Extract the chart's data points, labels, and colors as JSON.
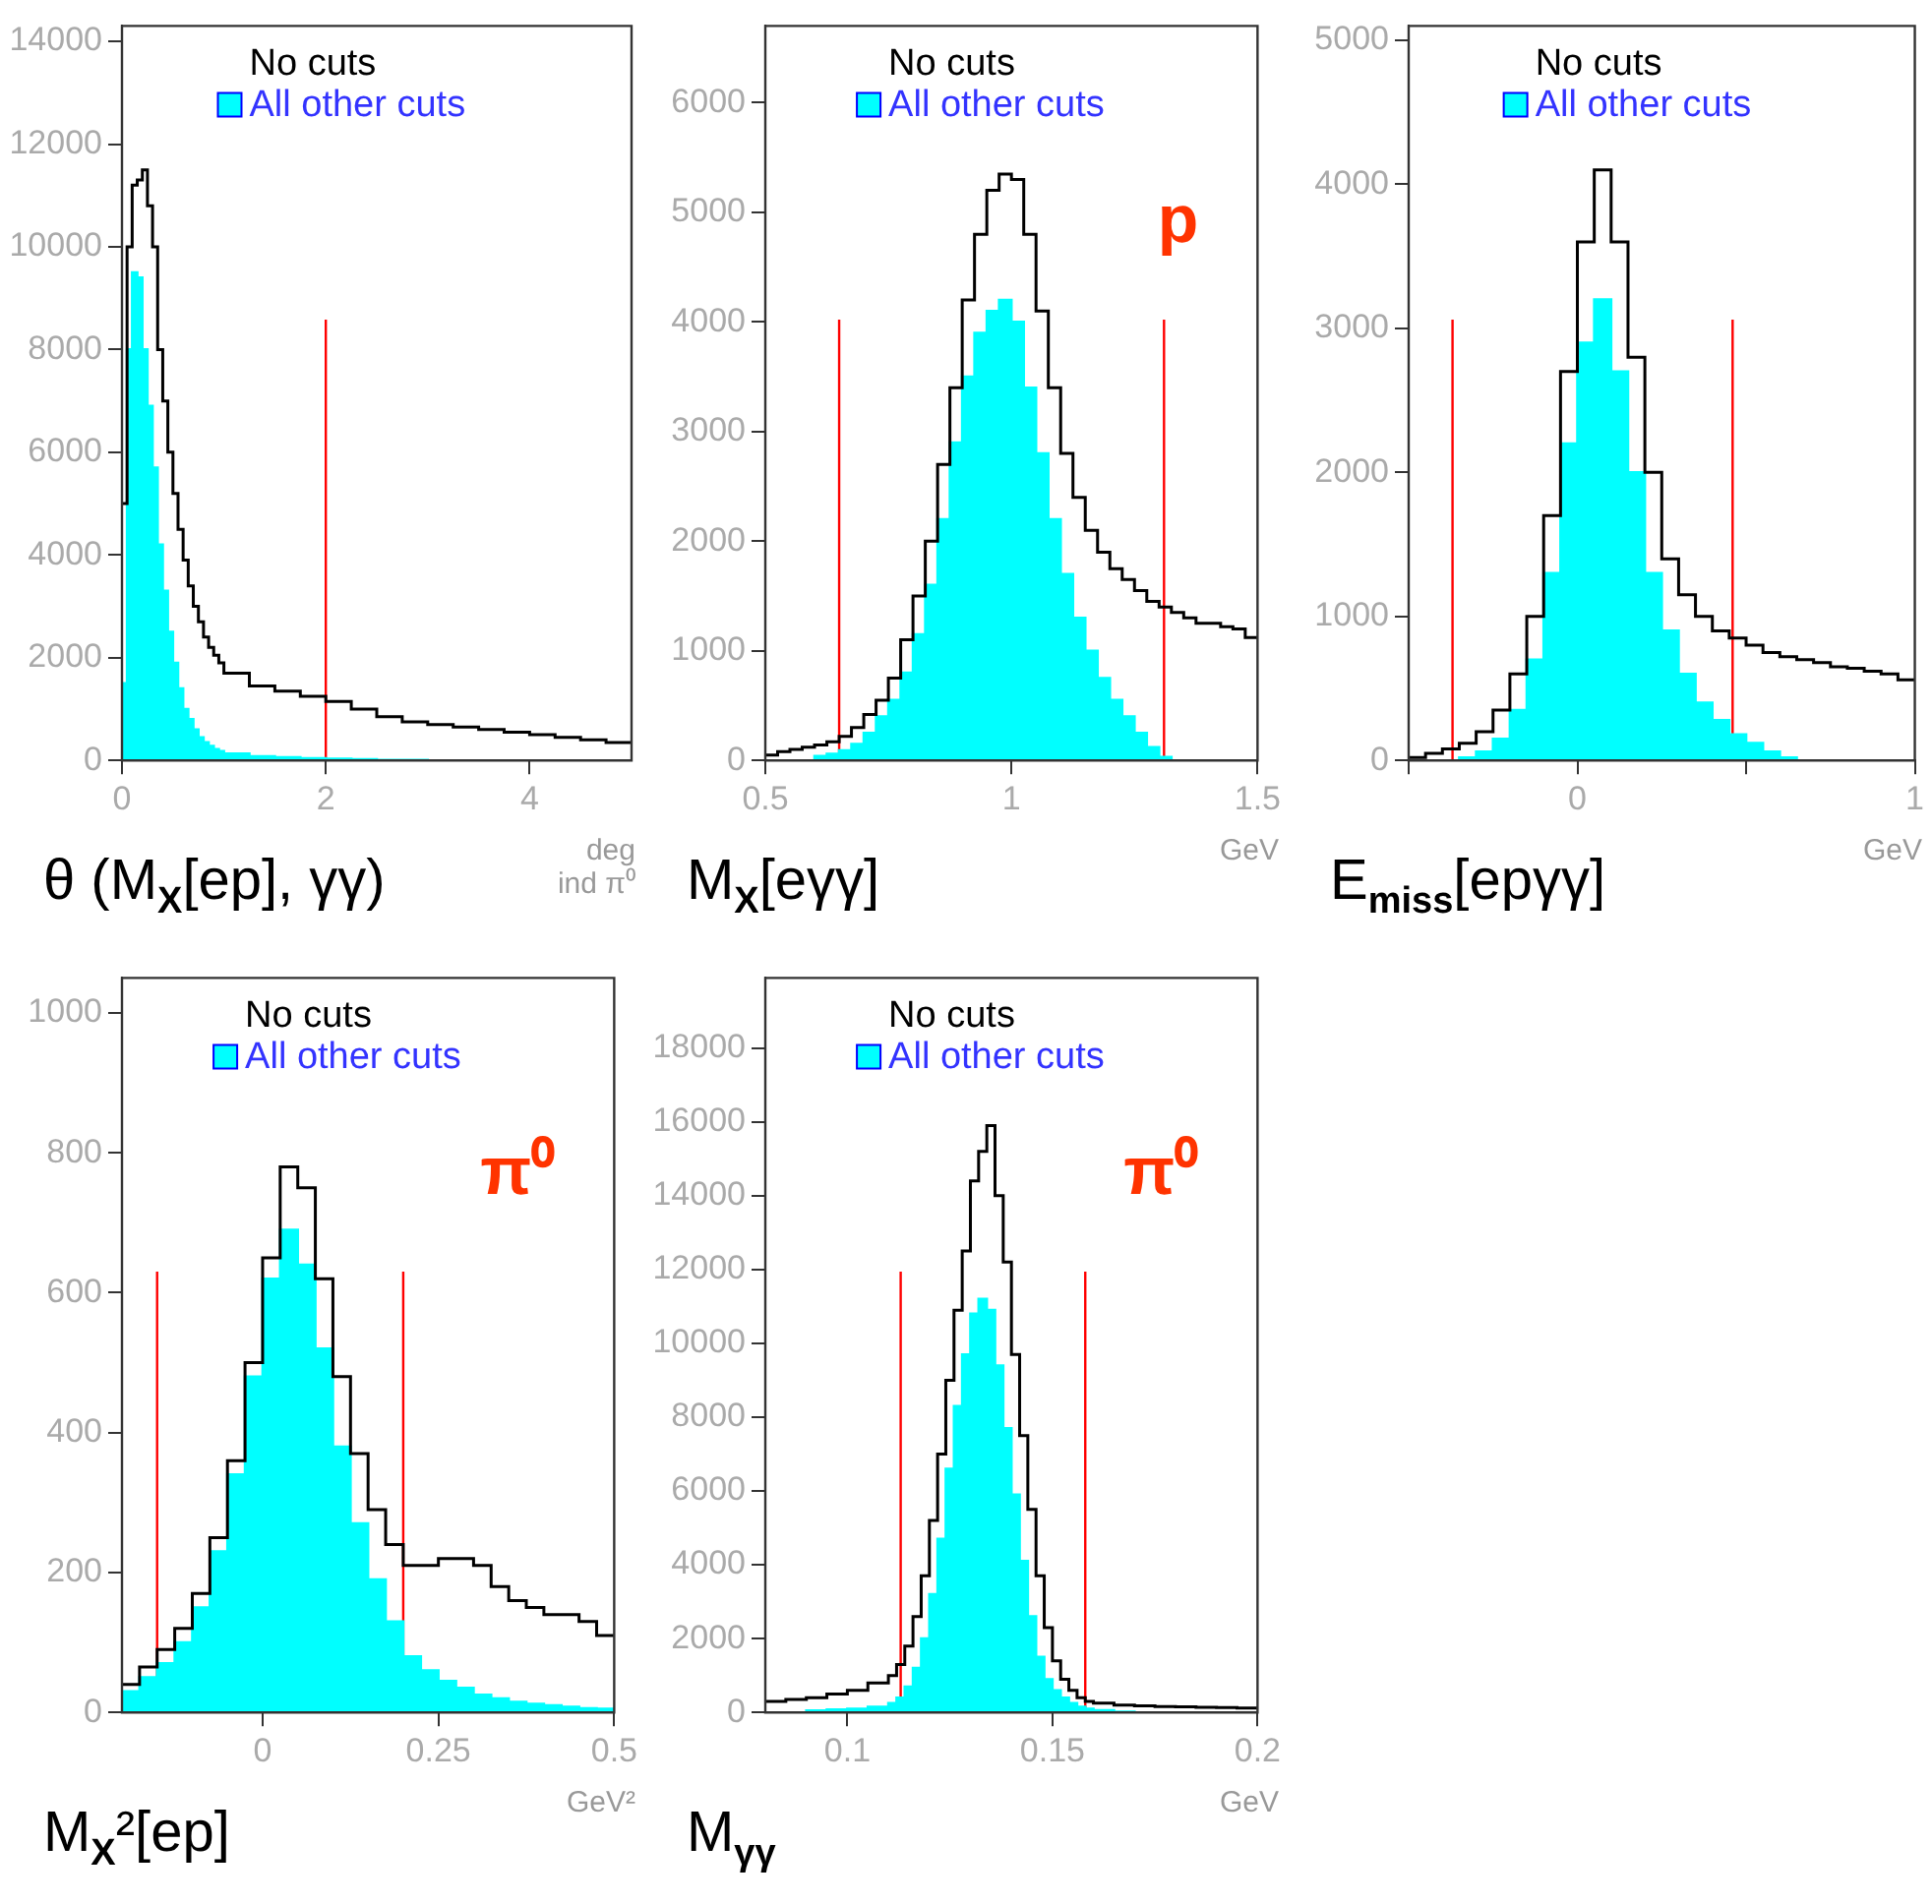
{
  "chart_data": [
    {
      "type": "histogram",
      "title": "θ (M$_{X}$[ep], γγ)",
      "xlabel": "deg ind π⁰",
      "xlim": [
        0,
        5
      ],
      "xticks": [
        0,
        2,
        4
      ],
      "ylim": [
        0,
        14300
      ],
      "yticks": [
        0,
        2000,
        4000,
        6000,
        8000,
        10000,
        12000,
        14000
      ],
      "legend": "top",
      "grid": false,
      "bins": [
        0,
        0.05,
        0.1,
        0.15,
        0.2,
        0.25,
        0.3,
        0.35,
        0.4,
        0.45,
        0.5,
        0.55,
        0.6,
        0.65,
        0.7,
        0.75,
        0.8,
        0.85,
        0.9,
        0.95,
        1.0,
        1.25,
        1.5,
        1.75,
        2.0,
        2.25,
        2.5,
        2.75,
        3.0,
        3.25,
        3.5,
        3.75,
        4.0,
        4.25,
        4.5,
        4.75,
        5.0
      ],
      "series": [
        {
          "name": "No cuts",
          "color": "#000000",
          "values": [
            5000,
            10000,
            11200,
            11300,
            11500,
            10800,
            10000,
            8000,
            7000,
            6000,
            5200,
            4500,
            3900,
            3400,
            3000,
            2700,
            2400,
            2200,
            2050,
            1900,
            1700,
            1450,
            1350,
            1250,
            1150,
            1000,
            850,
            750,
            700,
            650,
            600,
            550,
            500,
            450,
            400,
            350
          ]
        },
        {
          "name": "All other cuts",
          "color": "#00ffff",
          "values": [
            1500,
            8000,
            9500,
            9400,
            8000,
            6900,
            5700,
            4200,
            3300,
            2500,
            1900,
            1400,
            1000,
            800,
            600,
            450,
            350,
            280,
            220,
            180,
            130,
            80,
            60,
            40,
            30,
            20,
            10,
            10,
            0,
            0,
            0,
            0,
            0,
            0,
            0,
            0
          ]
        }
      ],
      "ref_lines": [
        {
          "axis": "x",
          "value": 2,
          "color": "#ff0000"
        }
      ]
    },
    {
      "type": "histogram",
      "title": "M$_{X}$[eγγ]",
      "xlabel": "GeV",
      "xlim": [
        0.5,
        1.5
      ],
      "xticks": [
        0.5,
        1,
        1.5
      ],
      "ylim": [
        0,
        6700
      ],
      "yticks": [
        0,
        1000,
        2000,
        3000,
        4000,
        5000,
        6000
      ],
      "legend": "top",
      "grid": false,
      "annotations": [
        "p"
      ],
      "bins": [
        0.5,
        0.525,
        0.55,
        0.575,
        0.6,
        0.625,
        0.65,
        0.675,
        0.7,
        0.725,
        0.75,
        0.775,
        0.8,
        0.825,
        0.85,
        0.875,
        0.9,
        0.925,
        0.95,
        0.975,
        1.0,
        1.025,
        1.05,
        1.075,
        1.1,
        1.125,
        1.15,
        1.175,
        1.2,
        1.225,
        1.25,
        1.275,
        1.3,
        1.325,
        1.35,
        1.375,
        1.4,
        1.425,
        1.45,
        1.475,
        1.5
      ],
      "series": [
        {
          "name": "No cuts",
          "color": "#000000",
          "values": [
            50,
            80,
            100,
            120,
            140,
            170,
            220,
            300,
            420,
            550,
            750,
            1100,
            1500,
            2000,
            2700,
            3400,
            4200,
            4800,
            5200,
            5350,
            5300,
            4800,
            4100,
            3400,
            2800,
            2400,
            2100,
            1900,
            1750,
            1650,
            1550,
            1450,
            1400,
            1350,
            1300,
            1250,
            1250,
            1220,
            1200,
            1120
          ]
        },
        {
          "name": "All other cuts",
          "color": "#00ffff",
          "values": [
            0,
            0,
            0,
            0,
            40,
            60,
            90,
            150,
            250,
            400,
            550,
            800,
            1150,
            1600,
            2200,
            2900,
            3500,
            3900,
            4100,
            4200,
            4000,
            3400,
            2800,
            2200,
            1700,
            1300,
            1000,
            750,
            550,
            400,
            250,
            120,
            30,
            0,
            0,
            0,
            0,
            0,
            0,
            0
          ]
        }
      ],
      "ref_lines": [
        {
          "axis": "x",
          "value": 0.65,
          "color": "#ff0000"
        },
        {
          "axis": "x",
          "value": 1.31,
          "color": "#ff0000"
        }
      ]
    },
    {
      "type": "histogram",
      "title": "E$_{miss}$[epγγ]",
      "xlabel": "GeV",
      "xlim": [
        -0.5,
        1
      ],
      "xticks": [
        {
          "value": -0.5,
          "label": null
        },
        0,
        {
          "value": 0.5,
          "label": null
        },
        1
      ],
      "ylim": [
        0,
        5100
      ],
      "yticks": [
        0,
        1000,
        2000,
        3000,
        4000,
        5000
      ],
      "legend": "top",
      "grid": false,
      "bins": [
        -0.5,
        -0.45,
        -0.4,
        -0.35,
        -0.3,
        -0.25,
        -0.2,
        -0.15,
        -0.1,
        -0.05,
        0,
        0.05,
        0.1,
        0.15,
        0.2,
        0.25,
        0.3,
        0.35,
        0.4,
        0.45,
        0.5,
        0.55,
        0.6,
        0.65,
        0.7,
        0.75,
        0.8,
        0.85,
        0.9,
        0.95,
        1.0
      ],
      "series": [
        {
          "name": "No cuts",
          "color": "#000000",
          "values": [
            20,
            50,
            80,
            120,
            200,
            350,
            600,
            1000,
            1700,
            2700,
            3600,
            4100,
            3600,
            2800,
            2000,
            1400,
            1150,
            1000,
            900,
            850,
            800,
            750,
            720,
            700,
            680,
            650,
            640,
            620,
            600,
            560
          ]
        },
        {
          "name": "All other cuts",
          "color": "#00ffff",
          "values": [
            0,
            0,
            0,
            20,
            60,
            150,
            350,
            700,
            1300,
            2200,
            2900,
            3200,
            2700,
            2000,
            1300,
            900,
            600,
            400,
            280,
            180,
            120,
            60,
            20,
            0,
            0,
            0,
            0,
            0,
            0,
            0
          ]
        }
      ],
      "ref_lines": [
        {
          "axis": "x",
          "value": -0.37,
          "color": "#ff0000"
        },
        {
          "axis": "x",
          "value": 0.46,
          "color": "#ff0000"
        }
      ]
    },
    {
      "type": "histogram",
      "title": "M$_{X}$²[ep]",
      "xlabel": "GeV²",
      "xlim": [
        -0.2,
        0.5
      ],
      "xticks": [
        0,
        0.25,
        0.5
      ],
      "ylim": [
        0,
        1050
      ],
      "yticks": [
        0,
        200,
        400,
        600,
        800,
        1000
      ],
      "legend": "top",
      "grid": false,
      "annotations": [
        "π⁰"
      ],
      "bins": [
        -0.2,
        -0.175,
        -0.15,
        -0.125,
        -0.1,
        -0.075,
        -0.05,
        -0.025,
        0,
        0.025,
        0.05,
        0.075,
        0.1,
        0.125,
        0.15,
        0.175,
        0.2,
        0.225,
        0.25,
        0.275,
        0.3,
        0.325,
        0.35,
        0.375,
        0.4,
        0.425,
        0.45,
        0.475,
        0.5
      ],
      "series": [
        {
          "name": "No cuts",
          "color": "#000000",
          "values": [
            40,
            65,
            90,
            120,
            170,
            250,
            360,
            500,
            650,
            780,
            750,
            620,
            480,
            370,
            290,
            240,
            210,
            210,
            220,
            220,
            210,
            180,
            160,
            150,
            140,
            140,
            130,
            110
          ]
        },
        {
          "name": "All other cuts",
          "color": "#00ffff",
          "values": [
            30,
            50,
            70,
            100,
            150,
            230,
            340,
            480,
            620,
            690,
            640,
            520,
            380,
            270,
            190,
            130,
            80,
            60,
            45,
            35,
            25,
            20,
            15,
            12,
            10,
            8,
            6,
            5
          ]
        }
      ],
      "ref_lines": [
        {
          "axis": "x",
          "value": -0.15,
          "color": "#ff0000"
        },
        {
          "axis": "x",
          "value": 0.2,
          "color": "#ff0000"
        }
      ]
    },
    {
      "type": "histogram",
      "title": "M$_{γγ}$",
      "xlabel": "GeV",
      "xlim": [
        0.08,
        0.2
      ],
      "xticks": [
        0.1,
        0.15,
        0.2
      ],
      "ylim": [
        0,
        19900
      ],
      "yticks": [
        0,
        2000,
        4000,
        6000,
        8000,
        10000,
        12000,
        14000,
        16000,
        18000
      ],
      "legend": "top",
      "grid": false,
      "annotations": [
        "π⁰"
      ],
      "bins": [
        0.08,
        0.085,
        0.09,
        0.095,
        0.1,
        0.105,
        0.11,
        0.112,
        0.114,
        0.116,
        0.118,
        0.12,
        0.122,
        0.124,
        0.126,
        0.128,
        0.13,
        0.132,
        0.134,
        0.136,
        0.138,
        0.14,
        0.142,
        0.144,
        0.146,
        0.148,
        0.15,
        0.152,
        0.154,
        0.156,
        0.158,
        0.16,
        0.165,
        0.17,
        0.175,
        0.18,
        0.185,
        0.19,
        0.195,
        0.2
      ],
      "series": [
        {
          "name": "No cuts",
          "color": "#000000",
          "values": [
            300,
            350,
            400,
            500,
            600,
            800,
            1000,
            1300,
            1800,
            2600,
            3700,
            5200,
            7000,
            9000,
            10900,
            12500,
            14400,
            15200,
            15900,
            14000,
            12200,
            9700,
            7500,
            5500,
            3700,
            2300,
            1400,
            900,
            600,
            400,
            300,
            250,
            200,
            180,
            160,
            150,
            140,
            130,
            120
          ]
        },
        {
          "name": "All other cuts",
          "color": "#00ffff",
          "values": [
            0,
            0,
            50,
            80,
            100,
            150,
            250,
            400,
            700,
            1200,
            2000,
            3200,
            4700,
            6600,
            8300,
            9700,
            10800,
            11200,
            10900,
            9400,
            7700,
            5900,
            4100,
            2600,
            1500,
            900,
            600,
            400,
            250,
            150,
            100,
            60,
            20,
            0,
            0,
            0,
            0,
            0,
            0
          ]
        }
      ],
      "ref_lines": [
        {
          "axis": "x",
          "value": 0.113,
          "color": "#ff0000"
        },
        {
          "axis": "x",
          "value": 0.158,
          "color": "#ff0000"
        }
      ]
    }
  ]
}
